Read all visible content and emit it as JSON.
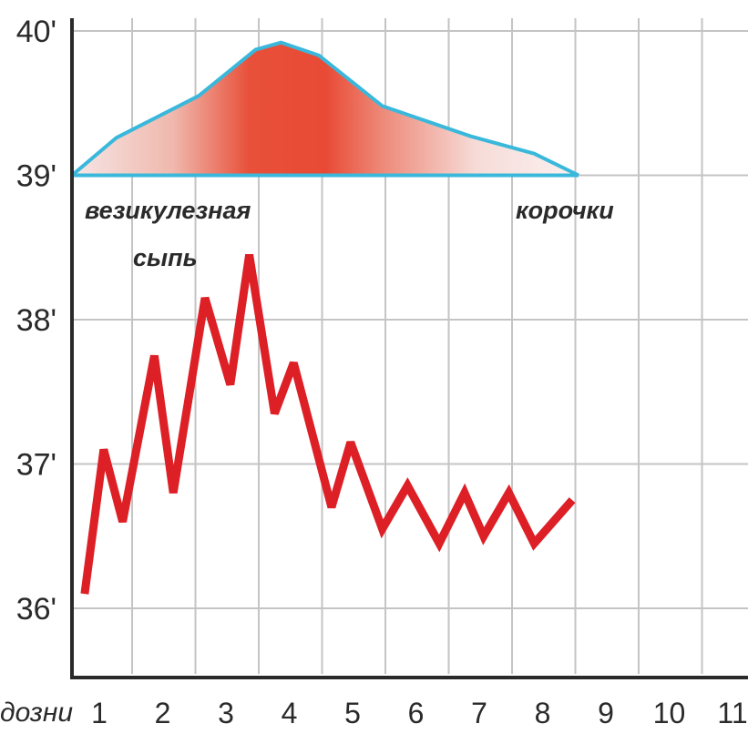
{
  "chart_data": {
    "type": "line",
    "xlabel": "дозни",
    "x_ticks": [
      "1",
      "2",
      "3",
      "4",
      "5",
      "6",
      "7",
      "8",
      "9",
      "10",
      "11"
    ],
    "y_ticks": [
      "40'",
      "39'",
      "38'",
      "37'",
      "36'"
    ],
    "ylim": [
      35.6,
      40.1
    ],
    "grid": true,
    "annotations": [
      {
        "text": "везикулезная"
      },
      {
        "text": "сыпь"
      },
      {
        "text": "корочки"
      }
    ],
    "series": [
      {
        "kind": "temperature",
        "color": "#dd1f26",
        "points": [
          [
            0.2,
            36.1
          ],
          [
            0.5,
            37.1
          ],
          [
            0.8,
            36.6
          ],
          [
            1.3,
            37.75
          ],
          [
            1.6,
            36.8
          ],
          [
            2.1,
            38.15
          ],
          [
            2.5,
            37.55
          ],
          [
            2.8,
            38.45
          ],
          [
            3.2,
            37.35
          ],
          [
            3.5,
            37.7
          ],
          [
            4.1,
            36.7
          ],
          [
            4.4,
            37.15
          ],
          [
            4.9,
            36.55
          ],
          [
            5.3,
            36.85
          ],
          [
            5.8,
            36.45
          ],
          [
            6.2,
            36.8
          ],
          [
            6.5,
            36.5
          ],
          [
            6.9,
            36.8
          ],
          [
            7.3,
            36.45
          ],
          [
            7.9,
            36.75
          ]
        ]
      },
      {
        "kind": "rash_intensity",
        "fill_color": "#e8503a",
        "stroke_color": "#39b8dc",
        "points": [
          [
            0.0,
            0.0
          ],
          [
            0.7,
            0.26
          ],
          [
            2.0,
            0.55
          ],
          [
            2.9,
            0.87
          ],
          [
            3.3,
            0.92
          ],
          [
            3.9,
            0.83
          ],
          [
            4.9,
            0.48
          ],
          [
            6.3,
            0.27
          ],
          [
            7.3,
            0.15
          ],
          [
            8.0,
            0.0
          ]
        ]
      }
    ]
  },
  "colors": {
    "grid": "#c4c4c4",
    "axis": "#2a2a2a"
  }
}
